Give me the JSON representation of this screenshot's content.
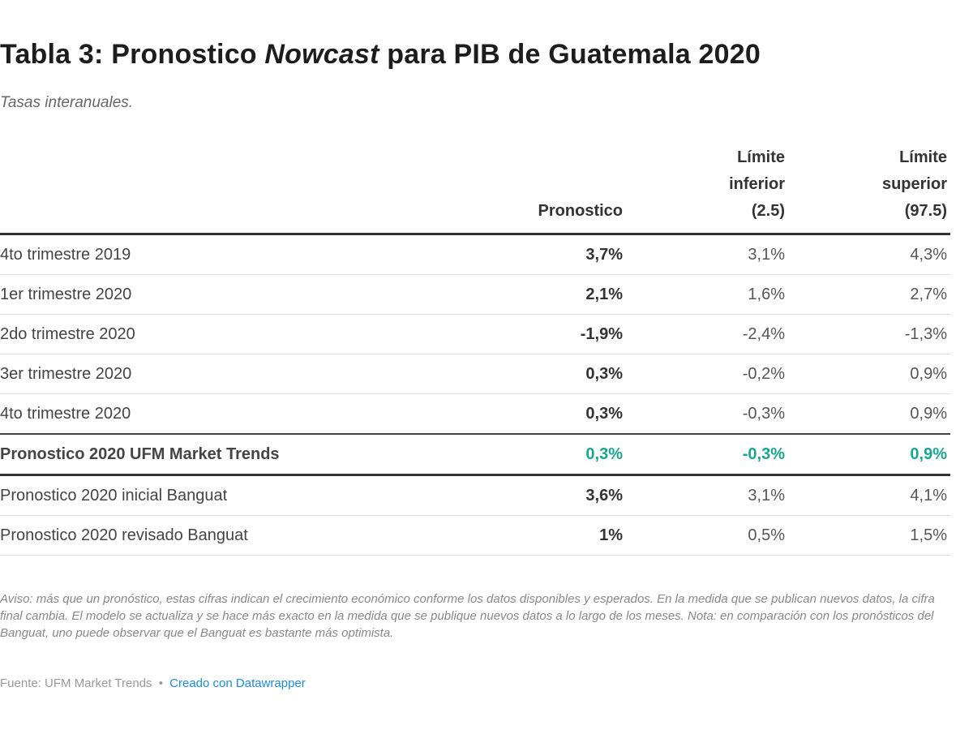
{
  "title": {
    "pre": "Tabla 3: Pronostico ",
    "em": "Nowcast",
    "post": " para PIB de Guatemala 2020"
  },
  "subtitle": "Tasas interanuales.",
  "chart_data": {
    "type": "table",
    "columns": [
      "",
      "Pronostico",
      "Límite\ninferior\n(2.5)",
      "Límite\nsuperior\n(97.5)"
    ],
    "rows": [
      {
        "label": "4to trimestre 2019",
        "values": [
          "3,7%",
          "3,1%",
          "4,3%"
        ]
      },
      {
        "label": "1er trimestre 2020",
        "values": [
          "2,1%",
          "1,6%",
          "2,7%"
        ]
      },
      {
        "label": "2do trimestre 2020",
        "values": [
          "-1,9%",
          "-2,4%",
          "-1,3%"
        ]
      },
      {
        "label": "3er trimestre 2020",
        "values": [
          "0,3%",
          "-0,2%",
          "0,9%"
        ]
      },
      {
        "label": "4to trimestre 2020",
        "values": [
          "0,3%",
          "-0,3%",
          "0,9%"
        ]
      },
      {
        "label": "Pronostico 2020 UFM Market Trends",
        "values": [
          "0,3%",
          "-0,3%",
          "0,9%"
        ]
      },
      {
        "label": "Pronostico 2020 inicial Banguat",
        "values": [
          "3,6%",
          "3,1%",
          "4,1%"
        ]
      },
      {
        "label": "Pronostico 2020 revisado Banguat",
        "values": [
          "1%",
          "0,5%",
          "1,5%"
        ]
      }
    ],
    "highlight_row": 5,
    "highlight_color": "#1aa58f"
  },
  "note": "Aviso: más que un pronóstico, estas cifras indican el crecimiento económico conforme los datos disponibles y esperados. En la medida que se publican nuevos datos, la cifra final cambia. El modelo se actualiza y se hace más exacto en la medida que se publique nuevos datos a lo largo de los meses. Nota: en comparación con los pronósticos del Banguat, uno puede observar que el Banguat es bastante más optimista.",
  "source": {
    "label": "Fuente: UFM Market Trends",
    "separator": "•",
    "link": "Creado con Datawrapper"
  }
}
